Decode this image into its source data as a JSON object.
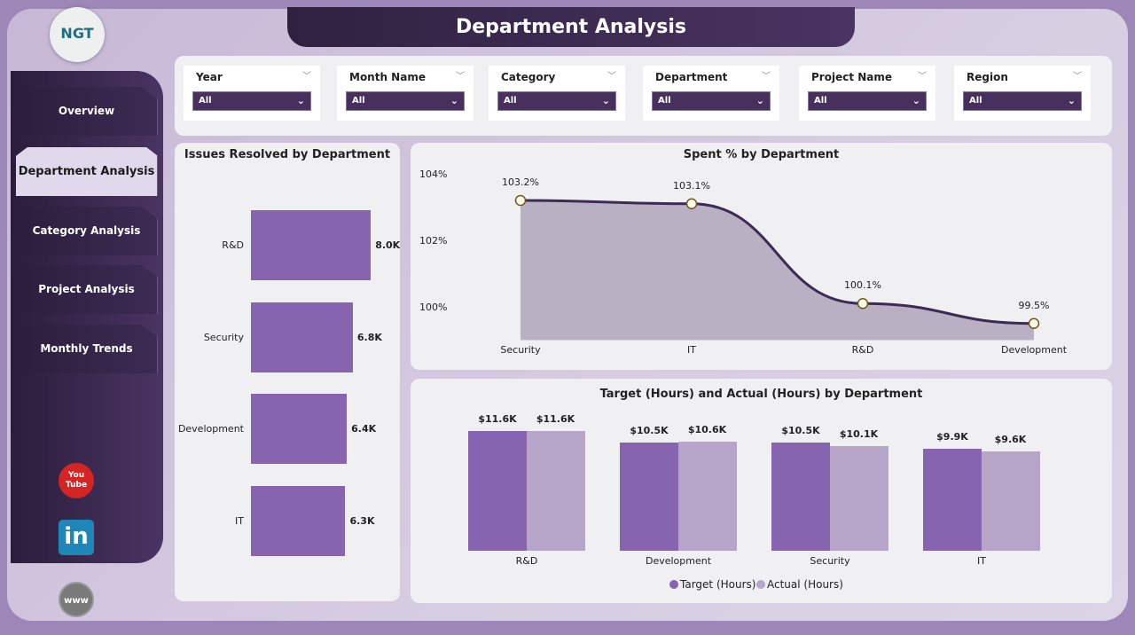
{
  "header": {
    "title": "Department Analysis",
    "logo_text": "NGT"
  },
  "sidebar": {
    "items": [
      {
        "label": "Overview",
        "active": false
      },
      {
        "label": "Department Analysis",
        "active": true
      },
      {
        "label": "Category Analysis",
        "active": false
      },
      {
        "label": "Project Analysis",
        "active": false
      },
      {
        "label": "Monthly Trends",
        "active": false
      }
    ],
    "social": [
      {
        "icon": "youtube-icon",
        "text": "You Tube"
      },
      {
        "icon": "linkedin-icon",
        "text": "in"
      },
      {
        "icon": "globe-www-icon",
        "text": "www"
      }
    ]
  },
  "filters": [
    {
      "label": "Year",
      "value": "All"
    },
    {
      "label": "Month Name",
      "value": "All"
    },
    {
      "label": "Category",
      "value": "All"
    },
    {
      "label": "Department",
      "value": "All"
    },
    {
      "label": "Project Name",
      "value": "All"
    },
    {
      "label": "Region",
      "value": "All"
    }
  ],
  "colors": {
    "primary": "#8764b0",
    "secondary": "#b6a5c9",
    "line": "#3d2a55",
    "area": "#b9b0c3",
    "dark": "#3a2750"
  },
  "chart_data": [
    {
      "type": "bar",
      "orientation": "horizontal",
      "title": "Issues Resolved by Department",
      "categories": [
        "R&D",
        "Security",
        "Development",
        "IT"
      ],
      "values": [
        8.0,
        6.8,
        6.4,
        6.3
      ],
      "labels": [
        "8.0K",
        "6.8K",
        "6.4K",
        "6.3K"
      ],
      "units": "K"
    },
    {
      "type": "area",
      "title": "Spent % by Department",
      "categories": [
        "Security",
        "IT",
        "R&D",
        "Development"
      ],
      "values": [
        103.2,
        103.1,
        100.1,
        99.5
      ],
      "labels": [
        "103.2%",
        "103.1%",
        "100.1%",
        "99.5%"
      ],
      "yticks": [
        "104%",
        "102%",
        "100%"
      ],
      "ylim": [
        99,
        104
      ]
    },
    {
      "type": "bar",
      "title": "Target (Hours) and Actual (Hours) by Department",
      "categories": [
        "R&D",
        "Development",
        "Security",
        "IT"
      ],
      "series": [
        {
          "name": "Target (Hours)",
          "values": [
            11.6,
            10.5,
            10.5,
            9.9
          ],
          "labels": [
            "$11.6K",
            "$10.5K",
            "$10.5K",
            "$9.9K"
          ]
        },
        {
          "name": "Actual (Hours)",
          "values": [
            11.6,
            10.6,
            10.1,
            9.6
          ],
          "labels": [
            "$11.6K",
            "$10.6K",
            "$10.1K",
            "$9.6K"
          ]
        }
      ],
      "legend": "bottom"
    }
  ]
}
